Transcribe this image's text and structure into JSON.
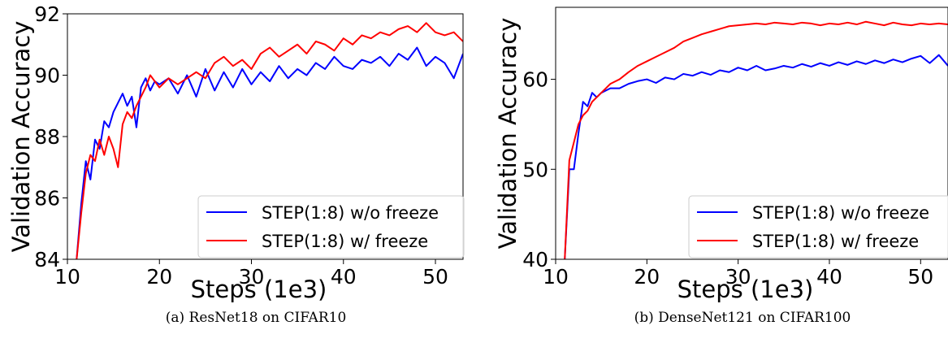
{
  "chart_data": [
    {
      "type": "line",
      "caption": "(a) ResNet18 on CIFAR10",
      "xlabel": "Steps (1e3)",
      "ylabel": "Validation Accuracy",
      "xlim": [
        10,
        53
      ],
      "ylim": [
        84,
        92
      ],
      "xticks": [
        10,
        20,
        30,
        40,
        50
      ],
      "yticks": [
        84,
        86,
        88,
        90,
        92
      ],
      "legend_position": "bottom-right",
      "series": [
        {
          "name": "STEP(1:8) w/o freeze",
          "color": "#0000ff",
          "x": [
            11,
            11.5,
            12,
            12.5,
            13,
            13.5,
            14,
            14.5,
            15,
            15.5,
            16,
            16.5,
            17,
            17.5,
            18,
            18.5,
            19,
            19.5,
            20,
            21,
            22,
            23,
            24,
            25,
            26,
            27,
            28,
            29,
            30,
            31,
            32,
            33,
            34,
            35,
            36,
            37,
            38,
            39,
            40,
            41,
            42,
            43,
            44,
            45,
            46,
            47,
            48,
            49,
            50,
            51,
            52,
            53
          ],
          "y": [
            84.0,
            85.8,
            87.2,
            86.6,
            87.9,
            87.6,
            88.5,
            88.3,
            88.8,
            89.1,
            89.4,
            89.0,
            89.3,
            88.3,
            89.6,
            89.9,
            89.5,
            89.8,
            89.7,
            89.9,
            89.4,
            90.0,
            89.3,
            90.2,
            89.5,
            90.1,
            89.6,
            90.2,
            89.7,
            90.1,
            89.8,
            90.3,
            89.9,
            90.2,
            90.0,
            90.4,
            90.2,
            90.6,
            90.3,
            90.2,
            90.5,
            90.4,
            90.6,
            90.3,
            90.7,
            90.5,
            90.9,
            90.3,
            90.6,
            90.4,
            89.9,
            90.7
          ]
        },
        {
          "name": "STEP(1:8) w/ freeze",
          "color": "#ff0000",
          "x": [
            11,
            11.5,
            12,
            12.5,
            13,
            13.5,
            14,
            14.5,
            15,
            15.5,
            16,
            16.5,
            17,
            17.5,
            18,
            18.5,
            19,
            19.5,
            20,
            21,
            22,
            23,
            24,
            25,
            26,
            27,
            28,
            29,
            30,
            31,
            32,
            33,
            34,
            35,
            36,
            37,
            38,
            39,
            40,
            41,
            42,
            43,
            44,
            45,
            46,
            47,
            48,
            49,
            50,
            51,
            52,
            53
          ],
          "y": [
            84.0,
            85.5,
            86.8,
            87.4,
            87.2,
            87.9,
            87.4,
            88.0,
            87.6,
            87.0,
            88.4,
            88.8,
            88.6,
            89.0,
            89.3,
            89.6,
            90.0,
            89.8,
            89.6,
            89.9,
            89.7,
            89.9,
            90.1,
            89.9,
            90.4,
            90.6,
            90.3,
            90.5,
            90.2,
            90.7,
            90.9,
            90.6,
            90.8,
            91.0,
            90.7,
            91.1,
            91.0,
            90.8,
            91.2,
            91.0,
            91.3,
            91.2,
            91.4,
            91.3,
            91.5,
            91.6,
            91.4,
            91.7,
            91.4,
            91.3,
            91.4,
            91.1
          ]
        }
      ]
    },
    {
      "type": "line",
      "caption": "(b) DenseNet121 on CIFAR100",
      "xlabel": "Steps (1e3)",
      "ylabel": "Validation Accuracy",
      "xlim": [
        10,
        53
      ],
      "ylim": [
        40,
        68
      ],
      "xticks": [
        10,
        20,
        30,
        40,
        50
      ],
      "yticks": [
        40,
        50,
        60
      ],
      "legend_position": "bottom-right",
      "series": [
        {
          "name": "STEP(1:8) w/o freeze",
          "color": "#0000ff",
          "x": [
            11,
            11.5,
            12,
            12.5,
            13,
            13.5,
            14,
            14.5,
            15,
            16,
            17,
            18,
            19,
            20,
            21,
            22,
            23,
            24,
            25,
            26,
            27,
            28,
            29,
            30,
            31,
            32,
            33,
            34,
            35,
            36,
            37,
            38,
            39,
            40,
            41,
            42,
            43,
            44,
            45,
            46,
            47,
            48,
            49,
            50,
            51,
            52,
            53
          ],
          "y": [
            40.0,
            50.0,
            50.0,
            54.0,
            57.5,
            57.0,
            58.5,
            58.0,
            58.5,
            59.0,
            59.0,
            59.5,
            59.8,
            60.0,
            59.6,
            60.2,
            60.0,
            60.6,
            60.4,
            60.8,
            60.5,
            61.0,
            60.8,
            61.3,
            61.0,
            61.5,
            61.0,
            61.2,
            61.5,
            61.3,
            61.7,
            61.4,
            61.8,
            61.5,
            61.9,
            61.6,
            62.0,
            61.7,
            62.1,
            61.8,
            62.2,
            61.9,
            62.3,
            62.6,
            61.8,
            62.7,
            61.5
          ]
        },
        {
          "name": "STEP(1:8) w/ freeze",
          "color": "#ff0000",
          "x": [
            11,
            11.5,
            12,
            12.5,
            13,
            13.5,
            14,
            14.5,
            15,
            16,
            17,
            18,
            19,
            20,
            21,
            22,
            23,
            24,
            25,
            26,
            27,
            28,
            29,
            30,
            31,
            32,
            33,
            34,
            35,
            36,
            37,
            38,
            39,
            40,
            41,
            42,
            43,
            44,
            45,
            46,
            47,
            48,
            49,
            50,
            51,
            52,
            53
          ],
          "y": [
            40.0,
            51.0,
            53.0,
            55.0,
            56.0,
            56.5,
            57.5,
            58.0,
            58.5,
            59.5,
            60.0,
            60.8,
            61.5,
            62.0,
            62.5,
            63.0,
            63.5,
            64.2,
            64.6,
            65.0,
            65.3,
            65.6,
            65.9,
            66.0,
            66.1,
            66.2,
            66.1,
            66.3,
            66.2,
            66.1,
            66.3,
            66.2,
            66.0,
            66.2,
            66.1,
            66.3,
            66.1,
            66.4,
            66.2,
            66.0,
            66.3,
            66.1,
            66.0,
            66.2,
            66.1,
            66.2,
            66.1
          ]
        }
      ]
    }
  ]
}
